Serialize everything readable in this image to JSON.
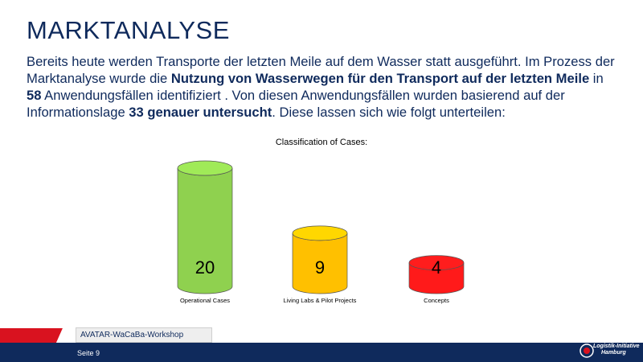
{
  "slide": {
    "title": "MARKTANALYSE",
    "body": [
      {
        "text": "Bereits heute werden Transporte der letzten Meile auf dem Wasser statt ausgeführt. Im Prozess der Marktanalyse wurde die ",
        "bold": false
      },
      {
        "text": "Nutzung von Wasserwegen für den Transport auf der letzten Meile",
        "bold": true
      },
      {
        "text": " in ",
        "bold": false
      },
      {
        "text": "58",
        "bold": true
      },
      {
        "text": " Anwendungsfällen identifiziert . Von diesen Anwendungsfällen wurden basierend auf der Informationslage ",
        "bold": false
      },
      {
        "text": "33 genauer untersucht",
        "bold": true
      },
      {
        "text": ". Diese lassen sich wie folgt unterteilen:",
        "bold": false
      }
    ]
  },
  "chart_data": {
    "type": "bar",
    "title": "Classification of Cases:",
    "categories": [
      "Operational Cases",
      "Living Labs & Pilot Projects",
      "Concepts"
    ],
    "values": [
      20,
      9,
      4
    ],
    "colors": [
      "#8fd14f",
      "#ffc000",
      "#ff1a1a"
    ],
    "ylim": [
      0,
      20
    ],
    "grid": false
  },
  "footer": {
    "workshop_label": "AVATAR-WaCaBa-Workshop",
    "page_label": "Seite 9",
    "logo_line1": "Logistik-Initiative",
    "logo_line2": "Hamburg",
    "bar_color": "#0f2a5c",
    "accent_color": "#d9121f"
  }
}
